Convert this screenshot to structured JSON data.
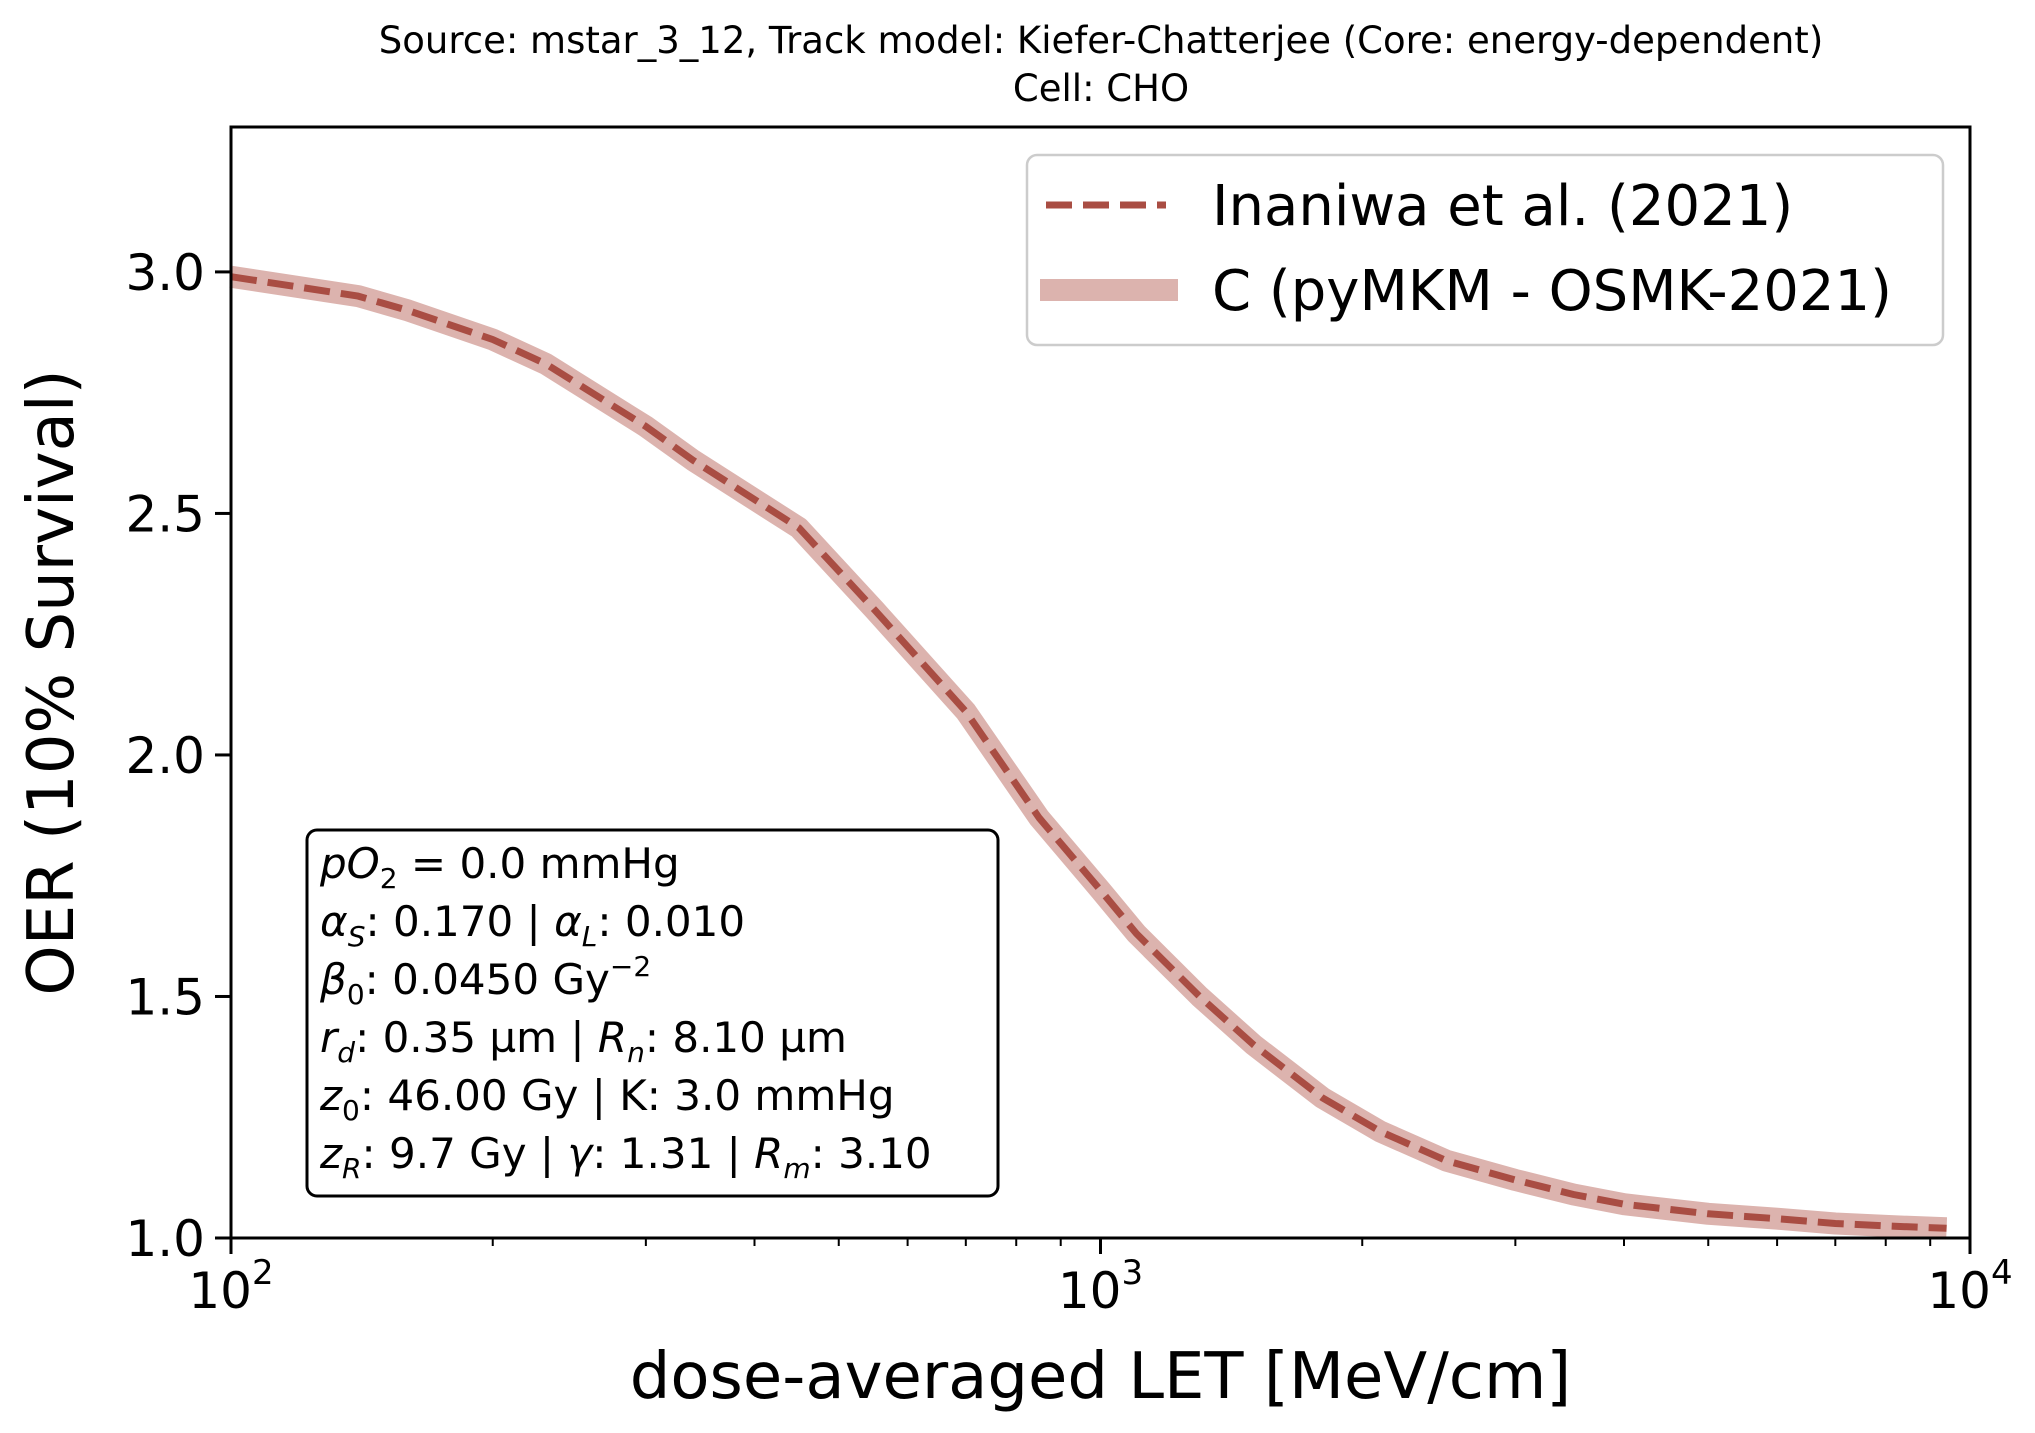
{
  "chart_data": {
    "type": "line",
    "title": "Source: mstar_3_12, Track model: Kiefer-Chatterjee (Core: energy-dependent)",
    "subtitle": "Cell: CHO",
    "xlabel": "dose-averaged LET [MeV/cm]",
    "ylabel": "OER (10% Survival)",
    "xscale": "log",
    "xlim": [
      100,
      10000
    ],
    "ylim": [
      1.0,
      3.3
    ],
    "x_ticks": [
      {
        "value": 100,
        "base": "10",
        "exp": "2"
      },
      {
        "value": 1000,
        "base": "10",
        "exp": "3"
      },
      {
        "value": 10000,
        "base": "10",
        "exp": "4"
      }
    ],
    "y_ticks": [
      {
        "value": 1.0,
        "label": "1.0"
      },
      {
        "value": 1.5,
        "label": "1.5"
      },
      {
        "value": 2.0,
        "label": "2.0"
      },
      {
        "value": 2.5,
        "label": "2.5"
      },
      {
        "value": 3.0,
        "label": "3.0"
      }
    ],
    "grid": false,
    "legend_position": "top-right",
    "series": [
      {
        "name": "Inaniwa et al. (2021)",
        "style": "dashed",
        "color": "#a94d43",
        "x": [
          100,
          140,
          160,
          200,
          230,
          300,
          340,
          450,
          550,
          700,
          850,
          1000,
          1100,
          1300,
          1500,
          1800,
          2100,
          2500,
          3000,
          3500,
          4000,
          5000,
          6000,
          7000,
          8000,
          9400
        ],
        "y": [
          2.99,
          2.95,
          2.92,
          2.86,
          2.81,
          2.68,
          2.61,
          2.47,
          2.3,
          2.09,
          1.87,
          1.72,
          1.63,
          1.5,
          1.4,
          1.29,
          1.22,
          1.16,
          1.12,
          1.09,
          1.07,
          1.05,
          1.04,
          1.03,
          1.025,
          1.02
        ]
      },
      {
        "name": "C (pyMKM - OSMK-2021)",
        "style": "solid-thick",
        "color": "#dcb3ae",
        "x": [
          100,
          140,
          160,
          200,
          230,
          300,
          340,
          450,
          550,
          700,
          850,
          1000,
          1100,
          1300,
          1500,
          1800,
          2100,
          2500,
          3000,
          3500,
          4000,
          5000,
          6000,
          7000,
          8000,
          9400
        ],
        "y": [
          2.99,
          2.95,
          2.92,
          2.86,
          2.81,
          2.68,
          2.61,
          2.47,
          2.3,
          2.09,
          1.87,
          1.72,
          1.63,
          1.5,
          1.4,
          1.29,
          1.22,
          1.16,
          1.12,
          1.09,
          1.07,
          1.05,
          1.04,
          1.03,
          1.025,
          1.02
        ]
      }
    ],
    "annotation_box": {
      "position": "lower-left",
      "lines": [
        [
          {
            "t": "pO",
            "it": true
          },
          {
            "t": "2",
            "sub": true
          },
          {
            "t": " = 0.0 mmHg"
          }
        ],
        [
          {
            "t": "α",
            "it": true
          },
          {
            "t": "S",
            "sub": true,
            "it": true
          },
          {
            "t": ": 0.170 | "
          },
          {
            "t": "α",
            "it": true
          },
          {
            "t": "L",
            "sub": true,
            "it": true
          },
          {
            "t": ": 0.010"
          }
        ],
        [
          {
            "t": "β",
            "it": true
          },
          {
            "t": "0",
            "sub": true
          },
          {
            "t": ": 0.0450 Gy"
          },
          {
            "t": "−2",
            "sup": true
          }
        ],
        [
          {
            "t": "r",
            "it": true
          },
          {
            "t": "d",
            "sub": true,
            "it": true
          },
          {
            "t": ": 0.35 µm | "
          },
          {
            "t": "R",
            "it": true
          },
          {
            "t": "n",
            "sub": true,
            "it": true
          },
          {
            "t": ": 8.10 µm"
          }
        ],
        [
          {
            "t": "z",
            "it": true
          },
          {
            "t": "0",
            "sub": true
          },
          {
            "t": ": 46.00 Gy | K: 3.0 mmHg"
          }
        ],
        [
          {
            "t": "z",
            "it": true
          },
          {
            "t": "R",
            "sub": true,
            "it": true
          },
          {
            "t": ": 9.7 Gy | "
          },
          {
            "t": "γ",
            "it": true
          },
          {
            "t": ": 1.31 | "
          },
          {
            "t": "R",
            "it": true
          },
          {
            "t": "m",
            "sub": true,
            "it": true
          },
          {
            "t": ": 3.10"
          }
        ]
      ]
    }
  }
}
